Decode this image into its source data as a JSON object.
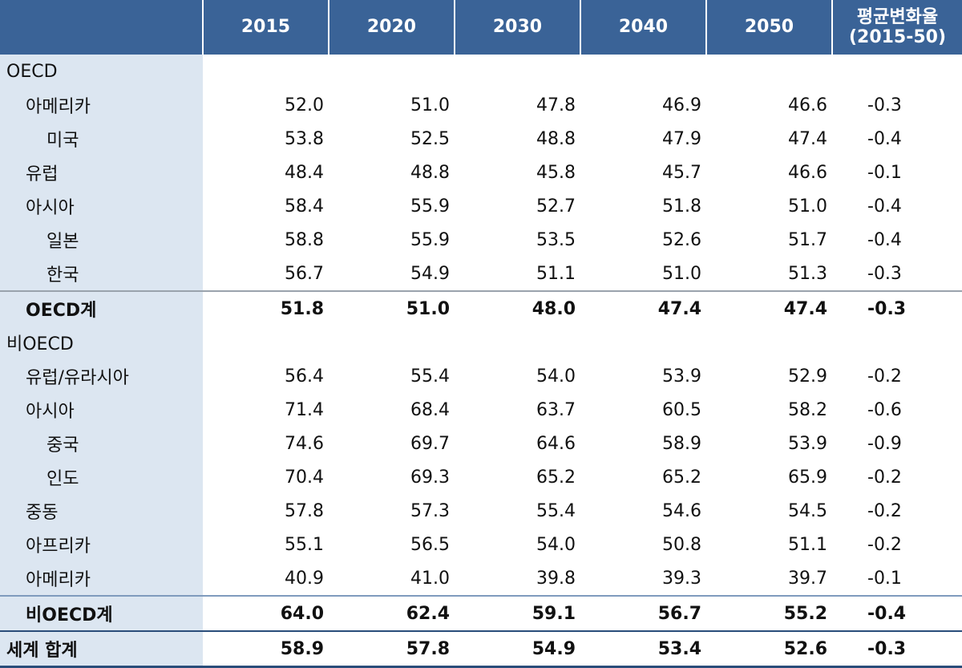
{
  "header": {
    "years": [
      "2015",
      "2020",
      "2030",
      "2040",
      "2050"
    ],
    "rate_title": "평균변화율",
    "rate_period": "(2015-50)"
  },
  "rows": [
    {
      "label": "OECD",
      "values": [
        "",
        "",
        "",
        "",
        "",
        ""
      ]
    },
    {
      "label": "아메리카",
      "values": [
        "52.0",
        "51.0",
        "47.8",
        "46.9",
        "46.6",
        "-0.3"
      ]
    },
    {
      "label": "미국",
      "values": [
        "53.8",
        "52.5",
        "48.8",
        "47.9",
        "47.4",
        "-0.4"
      ]
    },
    {
      "label": "유럽",
      "values": [
        "48.4",
        "48.8",
        "45.8",
        "45.7",
        "46.6",
        "-0.1"
      ]
    },
    {
      "label": "아시아",
      "values": [
        "58.4",
        "55.9",
        "52.7",
        "51.8",
        "51.0",
        "-0.4"
      ]
    },
    {
      "label": "일본",
      "values": [
        "58.8",
        "55.9",
        "53.5",
        "52.6",
        "51.7",
        "-0.4"
      ]
    },
    {
      "label": "한국",
      "values": [
        "56.7",
        "54.9",
        "51.1",
        "51.0",
        "51.3",
        "-0.3"
      ]
    },
    {
      "label": "OECD계",
      "values": [
        "51.8",
        "51.0",
        "48.0",
        "47.4",
        "47.4",
        "-0.3"
      ]
    },
    {
      "label": "비OECD",
      "values": [
        "",
        "",
        "",
        "",
        "",
        ""
      ]
    },
    {
      "label": "유럽/유라시아",
      "values": [
        "56.4",
        "55.4",
        "54.0",
        "53.9",
        "52.9",
        "-0.2"
      ]
    },
    {
      "label": "아시아",
      "values": [
        "71.4",
        "68.4",
        "63.7",
        "60.5",
        "58.2",
        "-0.6"
      ]
    },
    {
      "label": "중국",
      "values": [
        "74.6",
        "69.7",
        "64.6",
        "58.9",
        "53.9",
        "-0.9"
      ]
    },
    {
      "label": "인도",
      "values": [
        "70.4",
        "69.3",
        "65.2",
        "65.2",
        "65.9",
        "-0.2"
      ]
    },
    {
      "label": "중동",
      "values": [
        "57.8",
        "57.3",
        "55.4",
        "54.6",
        "54.5",
        "-0.2"
      ]
    },
    {
      "label": "아프리카",
      "values": [
        "55.1",
        "56.5",
        "54.0",
        "50.8",
        "51.1",
        "-0.2"
      ]
    },
    {
      "label": "아메리카",
      "values": [
        "40.9",
        "41.0",
        "39.8",
        "39.3",
        "39.7",
        "-0.1"
      ]
    },
    {
      "label": "비OECD계",
      "values": [
        "64.0",
        "62.4",
        "59.1",
        "56.7",
        "55.2",
        "-0.4"
      ]
    },
    {
      "label": "세계 합계",
      "values": [
        "58.9",
        "57.8",
        "54.9",
        "53.4",
        "52.6",
        "-0.3"
      ]
    }
  ]
}
